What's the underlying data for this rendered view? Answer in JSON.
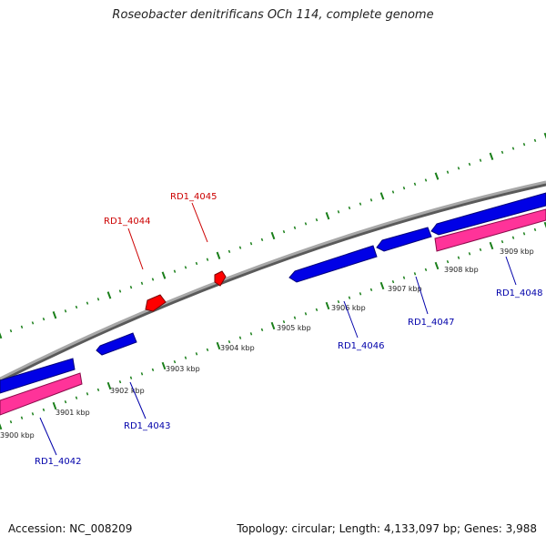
{
  "title": "Roseobacter denitrificans OCh 114, complete genome",
  "accession": "Accession: NC_008209",
  "summary": "Topology: circular; Length: 4,133,097 bp; Genes: 3,988",
  "colors": {
    "backbone": "#8c8c8c",
    "forward_cds": "#ff0000",
    "reverse_cds": "#0000ff",
    "reverse_feature": "#ff3399",
    "tick": "#1a7f1a",
    "label_forward": "#cc0000",
    "label_reverse": "#0000aa"
  },
  "kbp_labels": [
    "3900 kbp",
    "3901 kbp",
    "3902 kbp",
    "3903 kbp",
    "3904 kbp",
    "3905 kbp",
    "3906 kbp",
    "3907 kbp",
    "3908 kbp",
    "3909 kbp"
  ],
  "genes": [
    {
      "id": "RD1_4042",
      "strand": "reverse"
    },
    {
      "id": "RD1_4043",
      "strand": "reverse"
    },
    {
      "id": "RD1_4044",
      "strand": "forward"
    },
    {
      "id": "RD1_4045",
      "strand": "forward"
    },
    {
      "id": "RD1_4046",
      "strand": "reverse"
    },
    {
      "id": "RD1_4047",
      "strand": "reverse"
    },
    {
      "id": "RD1_4048",
      "strand": "reverse"
    }
  ]
}
